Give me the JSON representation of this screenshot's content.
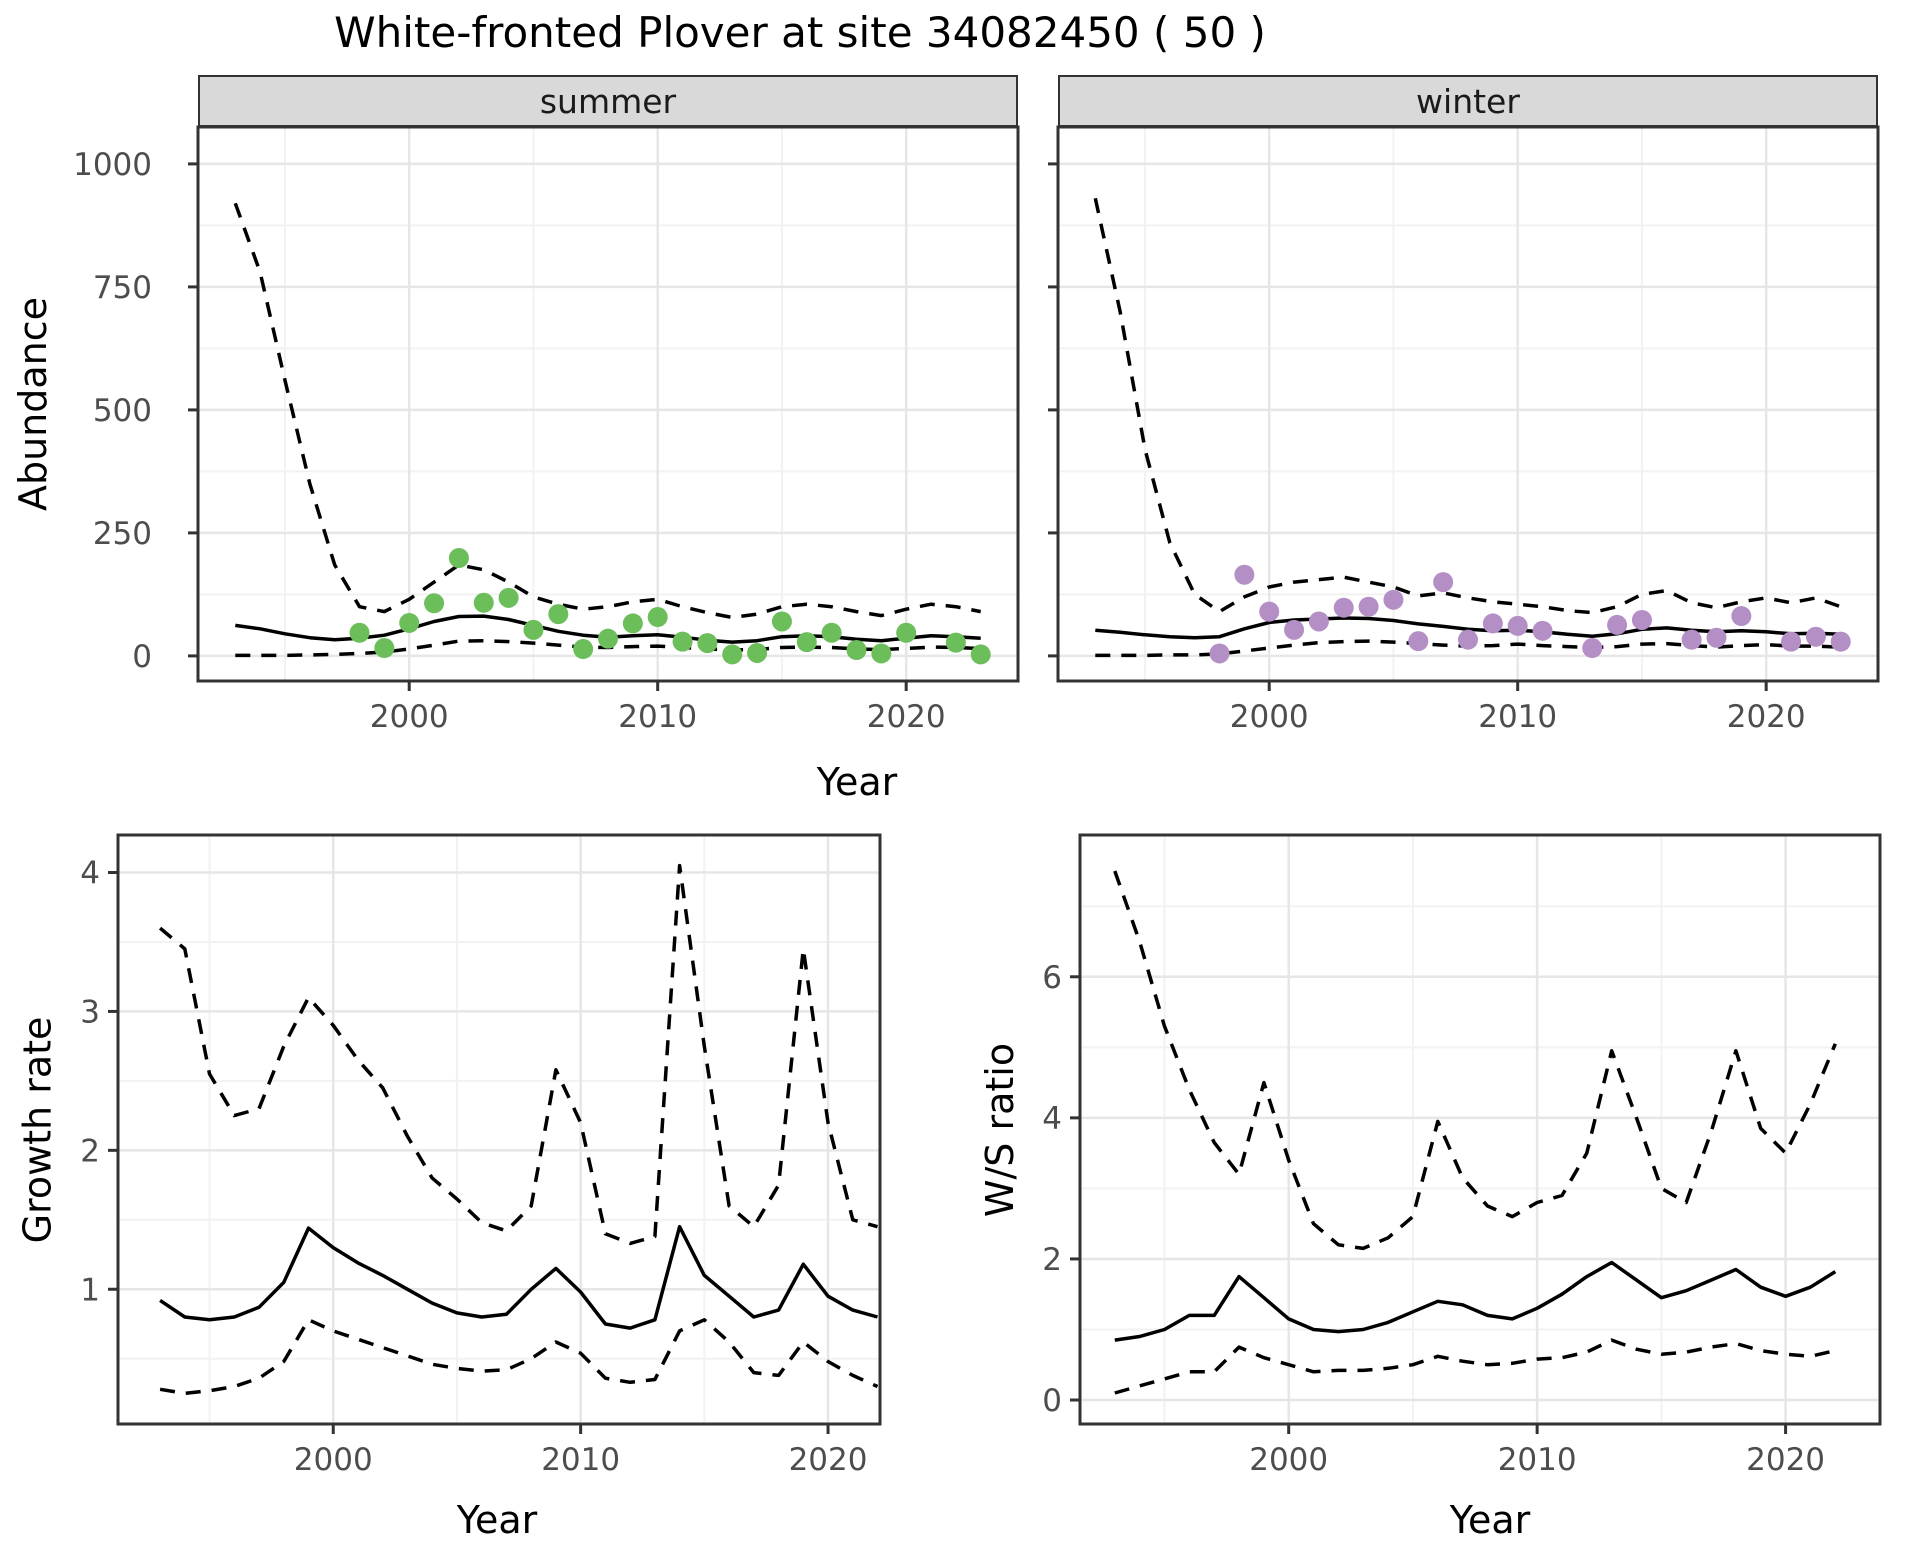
{
  "title": "White-fronted Plover at site 34082450 ( 50 )",
  "colors": {
    "summer_points": "#6CBE5B",
    "winter_points": "#B48FC6",
    "line": "#000000",
    "grid_major": "#e6e6e6",
    "grid_minor": "#f2f2f2",
    "panel_border": "#333333",
    "strip_fill": "#d9d9d9",
    "tick_label": "#4d4d4d"
  },
  "chart_data": [
    {
      "type": "line",
      "id": "abundance-summer",
      "facet_label": "summer",
      "ylabel": "Abundance",
      "xlabel": "Year",
      "x": [
        1993,
        1994,
        1995,
        1996,
        1997,
        1998,
        1999,
        2000,
        2001,
        2002,
        2003,
        2004,
        2005,
        2006,
        2007,
        2008,
        2009,
        2010,
        2011,
        2012,
        2013,
        2014,
        2015,
        2016,
        2017,
        2018,
        2019,
        2020,
        2021,
        2022,
        2023
      ],
      "series": [
        {
          "name": "fit",
          "style": "solid",
          "values": [
            62,
            55,
            45,
            37,
            33,
            36,
            42,
            55,
            70,
            80,
            81,
            74,
            62,
            50,
            42,
            38,
            41,
            43,
            38,
            32,
            28,
            31,
            39,
            41,
            39,
            34,
            31,
            36,
            41,
            39,
            36
          ]
        },
        {
          "name": "lower_ci",
          "style": "dashed",
          "values": [
            1,
            1,
            1,
            2,
            3,
            5,
            8,
            14,
            22,
            30,
            31,
            29,
            26,
            22,
            18,
            17,
            19,
            20,
            17,
            14,
            12,
            13,
            17,
            18,
            17,
            14,
            13,
            15,
            18,
            17,
            15
          ]
        },
        {
          "name": "upper_ci",
          "style": "dashed",
          "values": [
            920,
            780,
            560,
            350,
            185,
            100,
            90,
            115,
            150,
            185,
            175,
            150,
            120,
            105,
            95,
            100,
            110,
            115,
            100,
            88,
            78,
            85,
            100,
            105,
            100,
            90,
            82,
            95,
            105,
            100,
            90
          ]
        }
      ],
      "points": {
        "name": "observed_counts",
        "values": [
          null,
          null,
          null,
          null,
          null,
          47,
          16,
          67,
          107,
          199,
          108,
          118,
          53,
          85,
          14,
          35,
          66,
          79,
          29,
          26,
          3,
          6,
          70,
          28,
          47,
          12,
          5,
          47,
          null,
          27,
          3
        ]
      },
      "xlim": [
        1991.5,
        2024.5
      ],
      "ylim": [
        -51,
        1075
      ],
      "xticks": {
        "major": [
          2000,
          2010,
          2020
        ],
        "minor": [
          1995,
          2005,
          2015
        ],
        "labels": [
          "2000",
          "2010",
          "2020"
        ]
      },
      "yticks": {
        "major": [
          0,
          250,
          500,
          750,
          1000
        ],
        "minor": [
          125,
          375,
          625,
          875
        ],
        "labels": [
          "0",
          "250",
          "500",
          "750",
          "1000"
        ]
      },
      "grid": true
    },
    {
      "type": "line",
      "id": "abundance-winter",
      "facet_label": "winter",
      "ylabel": "Abundance",
      "xlabel": "Year",
      "x": [
        1993,
        1994,
        1995,
        1996,
        1997,
        1998,
        1999,
        2000,
        2001,
        2002,
        2003,
        2004,
        2005,
        2006,
        2007,
        2008,
        2009,
        2010,
        2011,
        2012,
        2013,
        2014,
        2015,
        2016,
        2017,
        2018,
        2019,
        2020,
        2021,
        2022,
        2023
      ],
      "series": [
        {
          "name": "fit",
          "style": "solid",
          "values": [
            52,
            48,
            43,
            39,
            37,
            39,
            55,
            68,
            73,
            75,
            77,
            76,
            72,
            65,
            60,
            54,
            51,
            52,
            49,
            44,
            40,
            45,
            54,
            57,
            52,
            49,
            51,
            49,
            45,
            46,
            44
          ]
        },
        {
          "name": "lower_ci",
          "style": "dashed",
          "values": [
            1,
            1,
            1,
            2,
            2,
            4,
            10,
            16,
            22,
            27,
            29,
            30,
            28,
            25,
            22,
            20,
            21,
            24,
            21,
            19,
            17,
            19,
            24,
            25,
            21,
            18,
            21,
            23,
            20,
            20,
            18
          ]
        },
        {
          "name": "upper_ci",
          "style": "dashed",
          "values": [
            930,
            700,
            420,
            230,
            125,
            90,
            120,
            140,
            150,
            155,
            160,
            150,
            140,
            122,
            128,
            118,
            110,
            105,
            100,
            92,
            88,
            100,
            125,
            133,
            108,
            98,
            110,
            118,
            108,
            118,
            100
          ]
        }
      ],
      "points": {
        "name": "observed_counts",
        "values": [
          null,
          null,
          null,
          null,
          null,
          5,
          165,
          90,
          53,
          70,
          98,
          100,
          114,
          30,
          150,
          33,
          66,
          61,
          51,
          null,
          16,
          63,
          73,
          null,
          33,
          37,
          81,
          null,
          29,
          39,
          29
        ]
      },
      "xlim": [
        1991.5,
        2024.5
      ],
      "ylim": [
        -51,
        1075
      ],
      "xticks": {
        "major": [
          2000,
          2010,
          2020
        ],
        "minor": [
          1995,
          2005,
          2015
        ],
        "labels": [
          "2000",
          "2010",
          "2020"
        ]
      },
      "yticks": {
        "major": [
          0,
          250,
          500,
          750,
          1000
        ],
        "minor": [
          125,
          375,
          625,
          875
        ],
        "labels": []
      },
      "grid": true
    },
    {
      "type": "line",
      "id": "growth-rate",
      "facet_label": "",
      "ylabel": "Growth rate",
      "xlabel": "Year",
      "x": [
        1993,
        1994,
        1995,
        1996,
        1997,
        1998,
        1999,
        2000,
        2001,
        2002,
        2003,
        2004,
        2005,
        2006,
        2007,
        2008,
        2009,
        2010,
        2011,
        2012,
        2013,
        2014,
        2015,
        2016,
        2017,
        2018,
        2019,
        2020,
        2021,
        2022
      ],
      "series": [
        {
          "name": "fit",
          "style": "solid",
          "values": [
            0.92,
            0.8,
            0.78,
            0.8,
            0.87,
            1.05,
            1.44,
            1.3,
            1.19,
            1.1,
            1.0,
            0.9,
            0.83,
            0.8,
            0.82,
            1.0,
            1.15,
            0.98,
            0.75,
            0.72,
            0.78,
            1.45,
            1.1,
            0.95,
            0.8,
            0.85,
            1.18,
            0.95,
            0.85,
            0.8
          ]
        },
        {
          "name": "lower_ci",
          "style": "dashed",
          "values": [
            0.28,
            0.25,
            0.27,
            0.3,
            0.36,
            0.48,
            0.78,
            0.7,
            0.64,
            0.58,
            0.52,
            0.46,
            0.43,
            0.41,
            0.42,
            0.5,
            0.62,
            0.54,
            0.36,
            0.33,
            0.35,
            0.7,
            0.78,
            0.62,
            0.4,
            0.38,
            0.62,
            0.48,
            0.38,
            0.3
          ]
        },
        {
          "name": "upper_ci",
          "style": "dashed",
          "values": [
            3.6,
            3.45,
            2.55,
            2.25,
            2.3,
            2.75,
            3.1,
            2.9,
            2.65,
            2.45,
            2.1,
            1.8,
            1.65,
            1.48,
            1.42,
            1.6,
            2.58,
            2.2,
            1.4,
            1.33,
            1.38,
            4.05,
            2.75,
            1.6,
            1.45,
            1.75,
            3.45,
            2.2,
            1.5,
            1.45
          ]
        }
      ],
      "points": null,
      "xlim": [
        1991.3,
        2022.1
      ],
      "ylim": [
        0.03,
        4.27
      ],
      "xticks": {
        "major": [
          2000,
          2010,
          2020
        ],
        "minor": [
          1995,
          2005,
          2015
        ],
        "labels": [
          "2000",
          "2010",
          "2020"
        ]
      },
      "yticks": {
        "major": [
          1,
          2,
          3,
          4
        ],
        "minor": [
          0.5,
          1.5,
          2.5,
          3.5
        ],
        "labels": [
          "1",
          "2",
          "3",
          "4"
        ]
      },
      "grid": true
    },
    {
      "type": "line",
      "id": "ws-ratio",
      "facet_label": "",
      "ylabel": "W/S ratio",
      "xlabel": "Year",
      "x": [
        1993,
        1994,
        1995,
        1996,
        1997,
        1998,
        1999,
        2000,
        2001,
        2002,
        2003,
        2004,
        2005,
        2006,
        2007,
        2008,
        2009,
        2010,
        2011,
        2012,
        2013,
        2014,
        2015,
        2016,
        2017,
        2018,
        2019,
        2020,
        2021,
        2022
      ],
      "series": [
        {
          "name": "fit",
          "style": "solid",
          "values": [
            0.85,
            0.9,
            1.0,
            1.2,
            1.2,
            1.75,
            1.45,
            1.15,
            1.0,
            0.97,
            1.0,
            1.1,
            1.25,
            1.4,
            1.35,
            1.2,
            1.15,
            1.3,
            1.5,
            1.75,
            1.95,
            1.7,
            1.45,
            1.55,
            1.7,
            1.85,
            1.6,
            1.47,
            1.6,
            1.82
          ]
        },
        {
          "name": "lower_ci",
          "style": "dashed",
          "values": [
            0.1,
            0.2,
            0.3,
            0.4,
            0.4,
            0.75,
            0.6,
            0.5,
            0.4,
            0.42,
            0.42,
            0.45,
            0.5,
            0.62,
            0.55,
            0.5,
            0.52,
            0.58,
            0.6,
            0.68,
            0.85,
            0.72,
            0.65,
            0.68,
            0.75,
            0.8,
            0.7,
            0.65,
            0.62,
            0.7
          ]
        },
        {
          "name": "upper_ci",
          "style": "dashed",
          "values": [
            7.5,
            6.5,
            5.3,
            4.4,
            3.65,
            3.2,
            4.5,
            3.4,
            2.5,
            2.2,
            2.15,
            2.3,
            2.6,
            3.95,
            3.15,
            2.75,
            2.6,
            2.8,
            2.9,
            3.5,
            4.95,
            4.0,
            3.0,
            2.8,
            3.8,
            4.95,
            3.85,
            3.5,
            4.2,
            5.05
          ]
        }
      ],
      "points": null,
      "xlim": [
        1991.6,
        2023.8
      ],
      "ylim": [
        -0.34,
        8.01
      ],
      "xticks": {
        "major": [
          2000,
          2010,
          2020
        ],
        "minor": [
          1995,
          2005,
          2015
        ],
        "labels": [
          "2000",
          "2010",
          "2020"
        ]
      },
      "yticks": {
        "major": [
          0,
          2,
          4,
          6
        ],
        "minor": [
          1,
          3,
          5,
          7
        ],
        "labels": [
          "0",
          "2",
          "4",
          "6"
        ]
      },
      "grid": true
    }
  ]
}
